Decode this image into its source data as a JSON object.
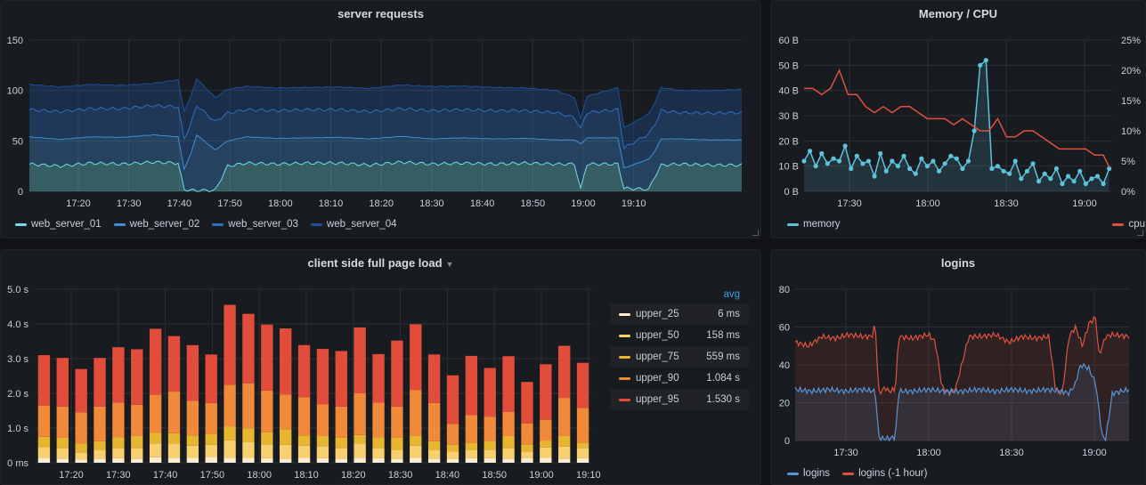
{
  "panels": {
    "server_requests": {
      "title": "server requests",
      "legend": [
        {
          "label": "web_server_01",
          "color": "#73dae5"
        },
        {
          "label": "web_server_02",
          "color": "#3f8ed6"
        },
        {
          "label": "web_server_03",
          "color": "#2f6fbf"
        },
        {
          "label": "web_server_04",
          "color": "#1f4f99"
        }
      ]
    },
    "memory_cpu": {
      "title": "Memory / CPU",
      "legend_left": {
        "label": "memory",
        "color": "#5bc4dc"
      },
      "legend_right": {
        "label": "cpu",
        "color": "#e0513f"
      }
    },
    "page_load": {
      "title": "client side full page load",
      "table_header": "avg",
      "legend": [
        {
          "label": "upper_25",
          "value": "6 ms",
          "color": "#fcedd0"
        },
        {
          "label": "upper_50",
          "value": "158 ms",
          "color": "#f8d06e"
        },
        {
          "label": "upper_75",
          "value": "559 ms",
          "color": "#e8b530"
        },
        {
          "label": "upper_90",
          "value": "1.084 s",
          "color": "#f08a3a"
        },
        {
          "label": "upper_95",
          "value": "1.530 s",
          "color": "#e24d3b"
        }
      ]
    },
    "logins": {
      "title": "logins",
      "legend": [
        {
          "label": "logins",
          "color": "#5794d6"
        },
        {
          "label": "logins (-1 hour)",
          "color": "#e0513f"
        }
      ]
    }
  },
  "chart_data": [
    {
      "id": "server_requests",
      "type": "area",
      "title": "server requests",
      "x_ticks": [
        "17:20",
        "17:30",
        "17:40",
        "17:50",
        "18:00",
        "18:10",
        "18:20",
        "18:30",
        "18:40",
        "18:50",
        "19:00",
        "19:10"
      ],
      "y_ticks": [
        "0",
        "50",
        "100",
        "150"
      ],
      "ylim": [
        0,
        150
      ],
      "xlim": [
        0,
        115
      ],
      "stacked": true,
      "grid": true,
      "legend_position": "bottom-left",
      "series": [
        {
          "name": "web_server_01",
          "color": "#73dae5",
          "x": [
            0,
            5,
            10,
            15,
            20,
            24,
            25,
            26,
            27,
            30,
            32,
            35,
            40,
            45,
            50,
            55,
            60,
            65,
            70,
            75,
            80,
            85,
            88,
            89,
            90,
            95,
            96,
            100,
            101,
            102,
            105,
            110,
            115
          ],
          "y": [
            27,
            25,
            28,
            27,
            29,
            28,
            2,
            1,
            1,
            1,
            25,
            28,
            27,
            28,
            28,
            26,
            29,
            27,
            28,
            27,
            28,
            27,
            27,
            2,
            27,
            27,
            3,
            2,
            15,
            26,
            27,
            26,
            26
          ]
        },
        {
          "name": "web_server_02",
          "color": "#3f8ed6",
          "x": [
            0,
            10,
            20,
            24,
            25,
            26,
            27,
            30,
            32,
            35,
            45,
            55,
            65,
            75,
            85,
            88,
            89,
            90,
            95,
            96,
            100,
            101,
            102,
            105,
            115
          ],
          "y": [
            27,
            26,
            27,
            26,
            20,
            35,
            55,
            40,
            25,
            26,
            25,
            26,
            25,
            25,
            24,
            24,
            45,
            26,
            26,
            20,
            30,
            25,
            26,
            25,
            25
          ]
        },
        {
          "name": "web_server_03",
          "color": "#2f6fbf",
          "x": [
            0,
            10,
            20,
            25,
            30,
            35,
            45,
            55,
            65,
            75,
            85,
            88,
            89,
            90,
            95,
            96,
            100,
            102,
            105,
            115
          ],
          "y": [
            27,
            28,
            29,
            30,
            28,
            27,
            28,
            27,
            28,
            28,
            27,
            22,
            15,
            25,
            28,
            20,
            25,
            28,
            26,
            27
          ]
        },
        {
          "name": "web_server_04",
          "color": "#1f4f99",
          "x": [
            0,
            10,
            20,
            25,
            30,
            35,
            45,
            55,
            65,
            75,
            85,
            88,
            89,
            90,
            95,
            96,
            100,
            102,
            105,
            115
          ],
          "y": [
            25,
            24,
            22,
            28,
            24,
            23,
            22,
            23,
            24,
            23,
            22,
            20,
            10,
            16,
            22,
            20,
            20,
            23,
            22,
            23
          ]
        }
      ]
    },
    {
      "id": "memory_cpu",
      "type": "line",
      "title": "Memory / CPU",
      "x_ticks": [
        "17:30",
        "18:00",
        "18:30",
        "19:00"
      ],
      "y_ticks": [
        "0 B",
        "10 B",
        "20 B",
        "30 B",
        "40 B",
        "50 B",
        "60 B"
      ],
      "ylim": [
        0,
        60
      ],
      "y2_ticks": [
        "0%",
        "5%",
        "10%",
        "15%",
        "20%",
        "25%"
      ],
      "y2lim": [
        0,
        25
      ],
      "xlim": [
        0,
        105
      ],
      "grid": true,
      "series": [
        {
          "name": "memory",
          "axis": "left",
          "color": "#5bc4dc",
          "x": [
            0,
            2,
            4,
            6,
            8,
            10,
            12,
            14,
            16,
            18,
            20,
            22,
            24,
            26,
            28,
            30,
            32,
            34,
            36,
            38,
            40,
            42,
            44,
            46,
            48,
            50,
            52,
            54,
            56,
            58,
            60,
            62,
            64,
            66,
            68,
            70,
            72,
            74,
            76,
            78,
            80,
            82,
            84,
            86,
            88,
            90,
            92,
            94,
            96,
            98,
            100,
            102,
            104
          ],
          "y": [
            12,
            16,
            10,
            15,
            11,
            13,
            12,
            18,
            9,
            14,
            11,
            12,
            6,
            15,
            8,
            12,
            10,
            14,
            9,
            7,
            13,
            10,
            12,
            8,
            11,
            14,
            13,
            9,
            12,
            24,
            50,
            52,
            9,
            10,
            8,
            7,
            12,
            5,
            8,
            11,
            4,
            7,
            5,
            9,
            3,
            6,
            4,
            8,
            3,
            5,
            6,
            3,
            9
          ]
        },
        {
          "name": "cpu",
          "axis": "right",
          "color": "#e0513f",
          "x": [
            0,
            3,
            6,
            9,
            12,
            15,
            18,
            21,
            24,
            27,
            30,
            33,
            36,
            39,
            42,
            45,
            48,
            51,
            54,
            57,
            60,
            63,
            66,
            69,
            72,
            75,
            78,
            81,
            84,
            87,
            90,
            93,
            96,
            99,
            102,
            104
          ],
          "y": [
            17,
            17,
            16,
            17,
            20,
            16,
            16,
            14,
            13,
            14,
            13,
            14,
            14,
            13,
            12,
            12,
            12,
            11,
            12,
            11,
            10,
            10,
            12,
            9,
            9,
            10,
            10,
            9,
            8,
            7,
            7,
            7,
            7,
            6,
            6,
            4
          ]
        }
      ]
    },
    {
      "id": "page_load",
      "type": "bar",
      "title": "client side full page load",
      "stacked": true,
      "x_ticks": [
        "17:20",
        "17:30",
        "17:40",
        "17:50",
        "18:00",
        "18:10",
        "18:20",
        "18:30",
        "18:40",
        "18:50",
        "19:00",
        "19:10"
      ],
      "y_ticks": [
        "0 ms",
        "1.0 s",
        "2.0 s",
        "3.0 s",
        "4.0 s",
        "5.0 s"
      ],
      "ylim": [
        0,
        5
      ],
      "legend_position": "right",
      "series": [
        {
          "name": "upper_25",
          "color": "#fcedd0",
          "values": [
            0.15,
            0.12,
            0.1,
            0.12,
            0.13,
            0.12,
            0.16,
            0.15,
            0.14,
            0.17,
            0.15,
            0.14,
            0.13,
            0.12,
            0.14,
            0.13,
            0.12,
            0.15,
            0.13,
            0.12,
            0.14,
            0.12,
            0.12,
            0.13,
            0.13,
            0.12,
            0.13,
            0.14,
            0.12,
            0.13
          ]
        },
        {
          "name": "upper_50",
          "color": "#f8d06e",
          "values": [
            0.3,
            0.3,
            0.2,
            0.25,
            0.3,
            0.3,
            0.4,
            0.4,
            0.35,
            0.35,
            0.5,
            0.45,
            0.4,
            0.4,
            0.35,
            0.35,
            0.3,
            0.4,
            0.3,
            0.25,
            0.35,
            0.25,
            0.2,
            0.25,
            0.25,
            0.3,
            0.2,
            0.3,
            0.35,
            0.3
          ]
        },
        {
          "name": "upper_75",
          "color": "#e8b530",
          "values": [
            0.3,
            0.3,
            0.25,
            0.25,
            0.3,
            0.35,
            0.3,
            0.3,
            0.3,
            0.3,
            0.4,
            0.4,
            0.35,
            0.45,
            0.3,
            0.3,
            0.3,
            0.25,
            0.3,
            0.35,
            0.3,
            0.25,
            0.2,
            0.2,
            0.25,
            0.35,
            0.2,
            0.2,
            0.3,
            0.15
          ]
        },
        {
          "name": "upper_90",
          "color": "#f08a3a",
          "values": [
            0.9,
            0.9,
            0.9,
            1.0,
            1.0,
            0.9,
            1.1,
            1.2,
            1.0,
            0.9,
            1.2,
            1.3,
            1.2,
            1.0,
            1.1,
            0.9,
            0.9,
            1.2,
            1.0,
            0.9,
            1.3,
            1.1,
            0.6,
            0.8,
            0.7,
            0.7,
            0.6,
            0.6,
            1.1,
            1.0
          ]
        },
        {
          "name": "upper_95",
          "color": "#e24d3b",
          "values": [
            1.45,
            1.4,
            1.25,
            1.4,
            1.6,
            1.6,
            1.9,
            1.6,
            1.6,
            1.4,
            2.3,
            2.0,
            1.9,
            1.9,
            1.5,
            1.6,
            1.6,
            1.9,
            1.4,
            1.9,
            1.9,
            1.4,
            1.4,
            1.7,
            1.4,
            1.6,
            1.2,
            1.6,
            1.5,
            1.3
          ]
        }
      ]
    },
    {
      "id": "logins",
      "type": "area",
      "title": "logins",
      "x_ticks": [
        "17:30",
        "18:00",
        "18:30",
        "19:00"
      ],
      "y_ticks": [
        "0",
        "20",
        "40",
        "60",
        "80"
      ],
      "ylim": [
        0,
        80
      ],
      "xlim": [
        0,
        100
      ],
      "grid": true,
      "series": [
        {
          "name": "logins",
          "color": "#5794d6",
          "x": [
            0,
            5,
            10,
            15,
            20,
            24,
            25,
            26,
            28,
            30,
            31,
            35,
            40,
            45,
            50,
            55,
            60,
            65,
            70,
            75,
            80,
            82,
            84,
            85,
            86,
            88,
            90,
            92,
            93,
            95,
            100
          ],
          "y": [
            27,
            26,
            27,
            26,
            27,
            26,
            2,
            1,
            1,
            2,
            26,
            26,
            27,
            26,
            26,
            27,
            26,
            27,
            26,
            27,
            26,
            25,
            30,
            38,
            40,
            38,
            30,
            2,
            1,
            25,
            27
          ]
        },
        {
          "name": "logins (-1 hour)",
          "color": "#e0513f",
          "x": [
            0,
            4,
            8,
            12,
            16,
            20,
            23,
            24,
            25,
            27,
            28,
            30,
            31,
            35,
            40,
            42,
            44,
            46,
            48,
            52,
            56,
            60,
            64,
            68,
            72,
            76,
            78,
            80,
            82,
            84,
            86,
            88,
            90,
            91,
            93,
            95,
            100
          ],
          "y": [
            52,
            50,
            55,
            54,
            56,
            55,
            55,
            62,
            25,
            28,
            26,
            27,
            55,
            54,
            56,
            52,
            28,
            25,
            27,
            55,
            55,
            56,
            52,
            55,
            54,
            55,
            27,
            25,
            55,
            60,
            50,
            62,
            65,
            45,
            55,
            56,
            55
          ]
        }
      ]
    }
  ]
}
